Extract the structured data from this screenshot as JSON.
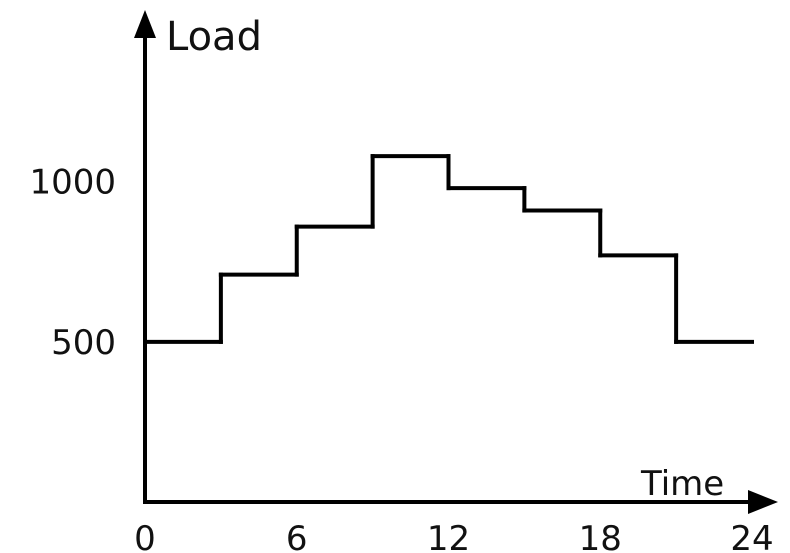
{
  "chart_data": {
    "type": "line",
    "step": true,
    "xlabel": "Time",
    "ylabel": "Load",
    "x_ticks": [
      0,
      6,
      12,
      18,
      24
    ],
    "y_ticks": [
      500,
      1000
    ],
    "xlim": [
      0,
      24
    ],
    "ylim": [
      0,
      1480
    ],
    "grid": false,
    "legend": "none",
    "series": [
      {
        "steps": [
          {
            "x_start": 0,
            "x_end": 3,
            "y": 500
          },
          {
            "x_start": 3,
            "x_end": 6,
            "y": 710
          },
          {
            "x_start": 6,
            "x_end": 9,
            "y": 860
          },
          {
            "x_start": 9,
            "x_end": 12,
            "y": 1080
          },
          {
            "x_start": 12,
            "x_end": 15,
            "y": 980
          },
          {
            "x_start": 15,
            "x_end": 18,
            "y": 910
          },
          {
            "x_start": 18,
            "x_end": 21,
            "y": 770
          },
          {
            "x_start": 21,
            "x_end": 24,
            "y": 500
          }
        ]
      }
    ]
  },
  "colors": {
    "line": "#000000",
    "axis": "#000000",
    "text": "#111111"
  }
}
